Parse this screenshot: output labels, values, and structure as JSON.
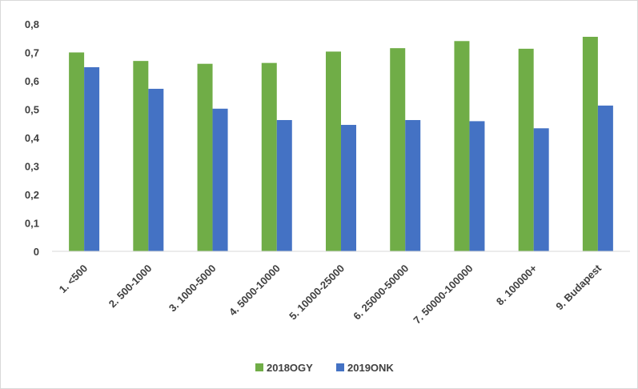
{
  "chart_data": {
    "type": "bar",
    "categories": [
      "1. <500",
      "2. 500-1000",
      "3. 1000-5000",
      "4. 5000-10000",
      "5. 10000-25000",
      "6. 25000-50000",
      "7. 50000-100000",
      "8. 100000+",
      "9. Budapest"
    ],
    "series": [
      {
        "name": "2018OGY",
        "color": "#70ad47",
        "values": [
          0.7,
          0.67,
          0.66,
          0.663,
          0.703,
          0.715,
          0.74,
          0.713,
          0.755
        ]
      },
      {
        "name": "2019ONK",
        "color": "#4472c4",
        "values": [
          0.648,
          0.572,
          0.502,
          0.462,
          0.445,
          0.462,
          0.458,
          0.433,
          0.513
        ]
      }
    ],
    "y_ticks": [
      "0",
      "0,1",
      "0,2",
      "0,3",
      "0,4",
      "0,5",
      "0,6",
      "0,7",
      "0,8"
    ],
    "ylim": [
      0,
      0.8
    ],
    "grid": false,
    "legend_position": "bottom",
    "title": "",
    "xlabel": "",
    "ylabel": ""
  }
}
